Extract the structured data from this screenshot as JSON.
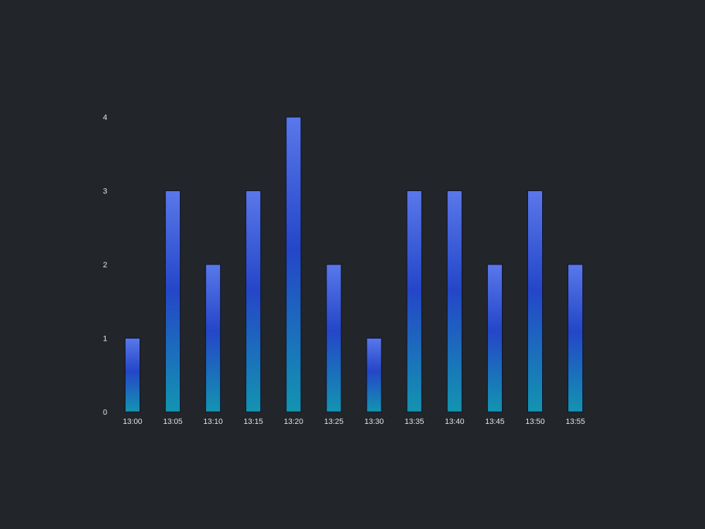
{
  "chart_data": {
    "type": "bar",
    "categories": [
      "13:00",
      "13:05",
      "13:10",
      "13:15",
      "13:20",
      "13:25",
      "13:30",
      "13:35",
      "13:40",
      "13:45",
      "13:50",
      "13:55"
    ],
    "values": [
      1,
      3,
      2,
      3,
      4,
      2,
      1,
      3,
      3,
      2,
      3,
      2
    ],
    "y_ticks": [
      "0",
      "1",
      "2",
      "3",
      "4"
    ],
    "ylim": [
      0,
      4
    ],
    "grid": false,
    "legend": false,
    "colors": {
      "background": "#222529",
      "bar_top": "#5a78ea",
      "bar_middle": "#2446c8",
      "bar_bottom": "#1394b0",
      "bar_edge": "#0d1330",
      "text": "#e6e6e6"
    }
  }
}
